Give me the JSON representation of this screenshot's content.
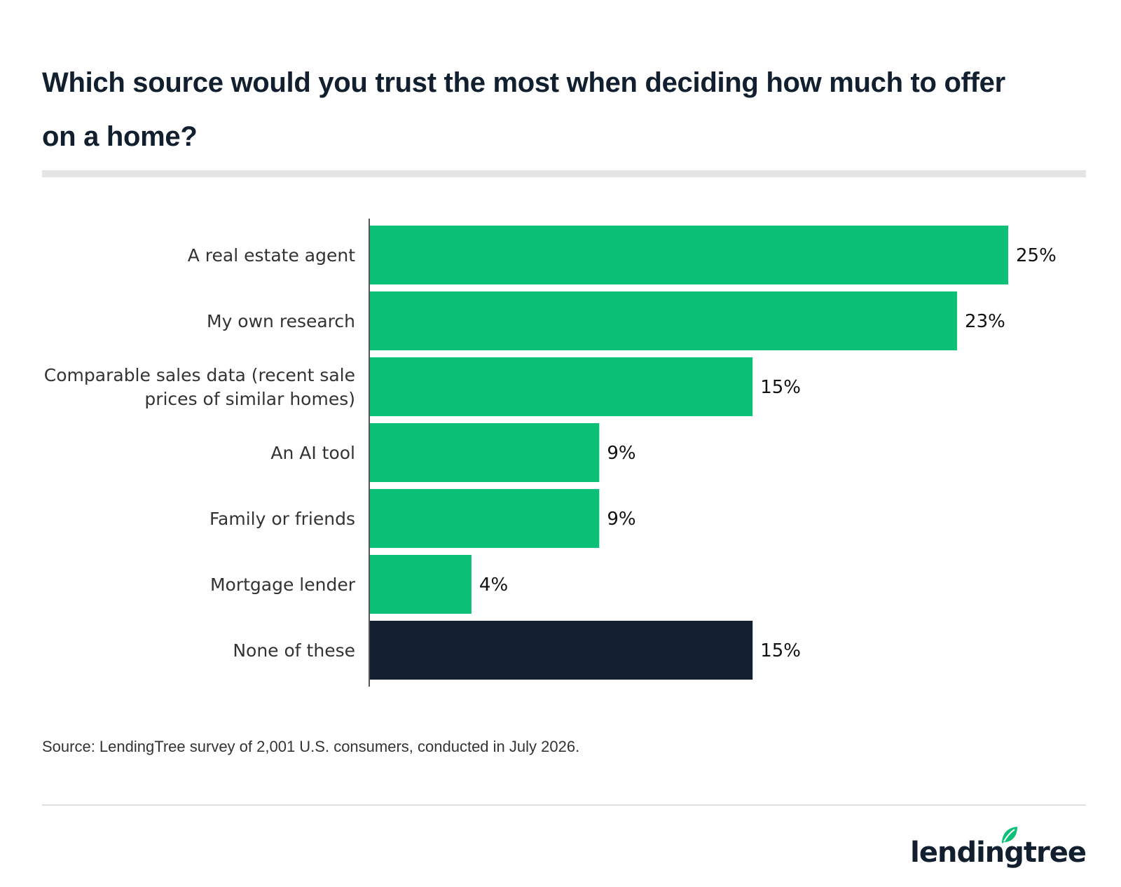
{
  "title": "Which source would you trust the most when deciding how much to offer on a home?",
  "source": "Source: LendingTree survey of 2,001 U.S. consumers, conducted in July 2026.",
  "logo": {
    "text": "lendingtree",
    "icon": "leaf-icon"
  },
  "colors": {
    "primary_bar": "#0cc177",
    "highlight_bar": "#122030",
    "axis": "#555555"
  },
  "chart_data": {
    "type": "bar",
    "orientation": "horizontal",
    "categories": [
      [
        "A real estate agent"
      ],
      [
        "My own research"
      ],
      [
        "Comparable sales data (recent sale",
        "prices of similar homes)"
      ],
      [
        "An AI tool"
      ],
      [
        "Family or friends"
      ],
      [
        "Mortgage lender"
      ],
      [
        "None of these"
      ]
    ],
    "values": [
      25,
      23,
      15,
      9,
      9,
      4,
      15
    ],
    "value_labels": [
      "25%",
      "23%",
      "15%",
      "9%",
      "9%",
      "4%",
      "15%"
    ],
    "bar_colors": [
      "#0cc177",
      "#0cc177",
      "#0cc177",
      "#0cc177",
      "#0cc177",
      "#0cc177",
      "#122030"
    ],
    "xlim": [
      0,
      25
    ],
    "grid": false,
    "legend": "none"
  }
}
